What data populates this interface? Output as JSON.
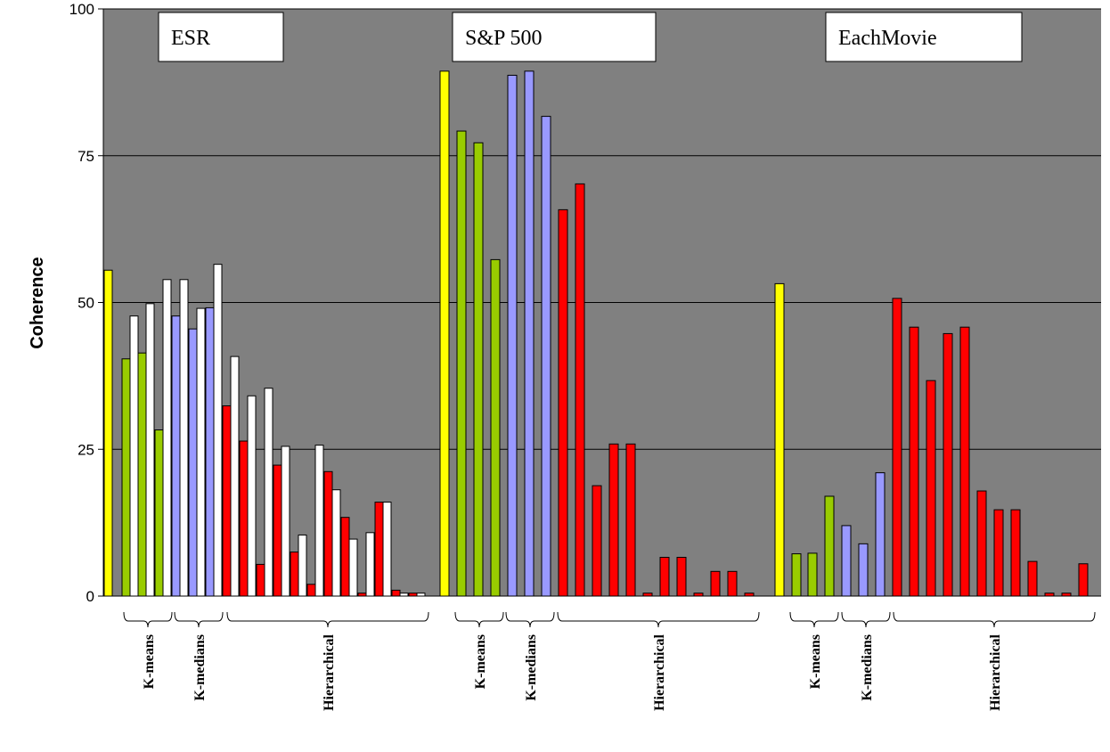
{
  "chart_data": {
    "type": "bar",
    "ylabel": "Coherence",
    "ylim": [
      0,
      100
    ],
    "yticks": [
      "0",
      "25",
      "50",
      "75",
      "100"
    ],
    "ytick_values": [
      0,
      25,
      50,
      75,
      100
    ],
    "grid": true,
    "colors": {
      "plot_bg": "#808080",
      "yellow": "#ffff00",
      "green": "#99cc00",
      "blue": "#9999ff",
      "red": "#ff0000",
      "white": "#ffffff"
    },
    "panels": [
      {
        "title": "ESR",
        "bars": [
          {
            "value": 55.5,
            "color": "yellow"
          },
          {
            "value": 40.4,
            "color": "green"
          },
          {
            "value": 47.7,
            "color": "white"
          },
          {
            "value": 41.4,
            "color": "green"
          },
          {
            "value": 49.8,
            "color": "white"
          },
          {
            "value": 28.3,
            "color": "green"
          },
          {
            "value": 53.9,
            "color": "white"
          },
          {
            "value": 47.7,
            "color": "blue"
          },
          {
            "value": 53.9,
            "color": "white"
          },
          {
            "value": 45.5,
            "color": "blue"
          },
          {
            "value": 49.0,
            "color": "white"
          },
          {
            "value": 49.1,
            "color": "blue"
          },
          {
            "value": 56.5,
            "color": "white"
          },
          {
            "value": 32.4,
            "color": "red"
          },
          {
            "value": 40.8,
            "color": "white"
          },
          {
            "value": 26.4,
            "color": "red"
          },
          {
            "value": 34.1,
            "color": "white"
          },
          {
            "value": 5.4,
            "color": "red"
          },
          {
            "value": 35.4,
            "color": "white"
          },
          {
            "value": 22.3,
            "color": "red"
          },
          {
            "value": 25.5,
            "color": "white"
          },
          {
            "value": 7.5,
            "color": "red"
          },
          {
            "value": 10.4,
            "color": "white"
          },
          {
            "value": 2.0,
            "color": "red"
          },
          {
            "value": 25.7,
            "color": "white"
          },
          {
            "value": 21.2,
            "color": "red"
          },
          {
            "value": 18.1,
            "color": "white"
          },
          {
            "value": 13.4,
            "color": "red"
          },
          {
            "value": 9.7,
            "color": "white"
          },
          {
            "value": 0.5,
            "color": "red"
          },
          {
            "value": 10.8,
            "color": "white"
          },
          {
            "value": 16.0,
            "color": "red"
          },
          {
            "value": 16.0,
            "color": "white"
          },
          {
            "value": 1.0,
            "color": "red"
          },
          {
            "value": 0.5,
            "color": "white"
          },
          {
            "value": 0.5,
            "color": "red"
          },
          {
            "value": 0.5,
            "color": "white"
          }
        ],
        "groups": [
          {
            "label": "K-means"
          },
          {
            "label": "K-medians"
          },
          {
            "label": "Hierarchical"
          }
        ]
      },
      {
        "title": "S&P 500",
        "bars": [
          {
            "value": 89.4,
            "color": "yellow"
          },
          {
            "value": 79.2,
            "color": "green"
          },
          {
            "value": 77.2,
            "color": "green"
          },
          {
            "value": 57.3,
            "color": "green"
          },
          {
            "value": 88.7,
            "color": "blue"
          },
          {
            "value": 89.4,
            "color": "blue"
          },
          {
            "value": 81.7,
            "color": "blue"
          },
          {
            "value": 65.8,
            "color": "red"
          },
          {
            "value": 70.2,
            "color": "red"
          },
          {
            "value": 18.8,
            "color": "red"
          },
          {
            "value": 25.9,
            "color": "red"
          },
          {
            "value": 25.9,
            "color": "red"
          },
          {
            "value": 0.5,
            "color": "red"
          },
          {
            "value": 6.6,
            "color": "red"
          },
          {
            "value": 6.6,
            "color": "red"
          },
          {
            "value": 0.5,
            "color": "red"
          },
          {
            "value": 4.2,
            "color": "red"
          },
          {
            "value": 4.2,
            "color": "red"
          },
          {
            "value": 0.5,
            "color": "red"
          }
        ],
        "groups": [
          {
            "label": "K-means"
          },
          {
            "label": "K-medians"
          },
          {
            "label": "Hierarchical"
          }
        ]
      },
      {
        "title": "EachMovie",
        "bars": [
          {
            "value": 53.2,
            "color": "yellow"
          },
          {
            "value": 7.2,
            "color": "green"
          },
          {
            "value": 7.3,
            "color": "green"
          },
          {
            "value": 17.0,
            "color": "green"
          },
          {
            "value": 12.0,
            "color": "blue"
          },
          {
            "value": 8.9,
            "color": "blue"
          },
          {
            "value": 21.0,
            "color": "blue"
          },
          {
            "value": 50.7,
            "color": "red"
          },
          {
            "value": 45.8,
            "color": "red"
          },
          {
            "value": 36.7,
            "color": "red"
          },
          {
            "value": 44.7,
            "color": "red"
          },
          {
            "value": 45.8,
            "color": "red"
          },
          {
            "value": 17.9,
            "color": "red"
          },
          {
            "value": 14.7,
            "color": "red"
          },
          {
            "value": 14.7,
            "color": "red"
          },
          {
            "value": 5.9,
            "color": "red"
          },
          {
            "value": 0.5,
            "color": "red"
          },
          {
            "value": 0.5,
            "color": "red"
          },
          {
            "value": 5.5,
            "color": "red"
          }
        ],
        "groups": [
          {
            "label": "K-means"
          },
          {
            "label": "K-medians"
          },
          {
            "label": "Hierarchical"
          }
        ]
      }
    ]
  }
}
